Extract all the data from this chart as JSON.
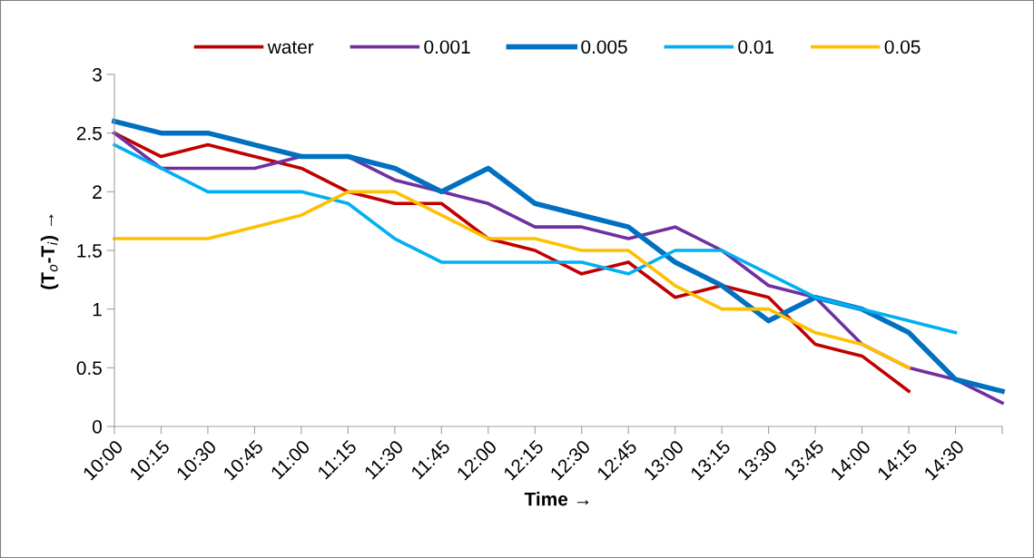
{
  "chart_data": {
    "type": "line",
    "xlabel": "Time →",
    "ylabel": "(T$_{o}$-T$_{i}$) →",
    "categories": [
      "10:00",
      "10:15",
      "10:30",
      "10:45",
      "11:00",
      "11:15",
      "11:30",
      "11:45",
      "12:00",
      "12:15",
      "12:30",
      "12:45",
      "13:00",
      "13:15",
      "13:30",
      "13:45",
      "14:00",
      "14:15",
      "14:30",
      null
    ],
    "series": [
      {
        "name": "water",
        "color": "#c00000",
        "values": [
          2.5,
          2.3,
          2.4,
          2.3,
          2.2,
          2.0,
          1.9,
          1.9,
          1.6,
          1.5,
          1.3,
          1.4,
          1.1,
          1.2,
          1.1,
          0.7,
          0.6,
          0.3,
          null,
          null
        ]
      },
      {
        "name": "0.001",
        "color": "#7030a0",
        "values": [
          2.5,
          2.2,
          2.2,
          2.2,
          2.3,
          2.3,
          2.1,
          2.0,
          1.9,
          1.7,
          1.7,
          1.6,
          1.7,
          1.5,
          1.2,
          1.1,
          0.7,
          0.5,
          0.4,
          0.2
        ]
      },
      {
        "name": "0.005",
        "color": "#0070c0",
        "values": [
          2.6,
          2.5,
          2.5,
          2.4,
          2.3,
          2.3,
          2.2,
          2.0,
          2.2,
          1.9,
          1.8,
          1.7,
          1.4,
          1.2,
          0.9,
          1.1,
          1.0,
          0.8,
          0.4,
          0.3
        ]
      },
      {
        "name": "0.01",
        "color": "#00b0f0",
        "values": [
          2.4,
          2.2,
          2.0,
          2.0,
          2.0,
          1.9,
          1.6,
          1.4,
          1.4,
          1.4,
          1.4,
          1.3,
          1.5,
          1.5,
          1.3,
          1.1,
          1.0,
          0.9,
          0.8,
          null
        ]
      },
      {
        "name": "0.05",
        "color": "#ffc000",
        "values": [
          1.6,
          1.6,
          1.6,
          1.7,
          1.8,
          2.0,
          2.0,
          1.8,
          1.6,
          1.6,
          1.5,
          1.5,
          1.2,
          1.0,
          1.0,
          0.8,
          0.7,
          0.5,
          null,
          null
        ]
      }
    ],
    "ylim": [
      0,
      3
    ],
    "yticks": [
      0,
      0.5,
      1,
      1.5,
      2,
      2.5,
      3
    ],
    "grid": false,
    "legend": "top",
    "marker": "none",
    "line_style": "solid"
  }
}
